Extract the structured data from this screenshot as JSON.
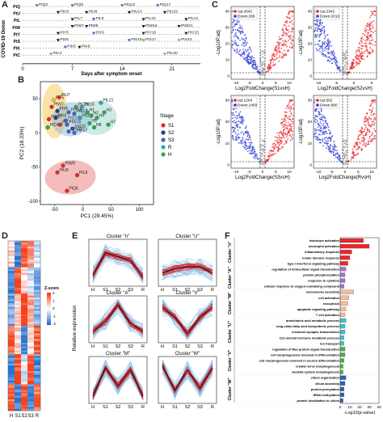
{
  "panel_labels": [
    "A",
    "B",
    "C",
    "D",
    "E",
    "F"
  ],
  "panelA": {
    "ylabel": "COVID-19 Donor",
    "xlabel": "Days after symptom onset",
    "rows": [
      "PtQ",
      "PtU",
      "PtL",
      "PtW",
      "PtY",
      "PtS",
      "PtK",
      "PtC"
    ],
    "xticks": [
      "0",
      "7",
      "14",
      "21"
    ],
    "points": [
      {
        "row": 0,
        "day": 2,
        "label": "PtQ3",
        "color": "#2d6ec9"
      },
      {
        "row": 0,
        "day": 7,
        "label": "PtQ5",
        "color": "#2d6ec9"
      },
      {
        "row": 0,
        "day": 14,
        "label": "PtQ12",
        "color": "#2d6ec9"
      },
      {
        "row": 0,
        "day": 19,
        "label": "PtQ17",
        "color": "#2d6ec9"
      },
      {
        "row": 1,
        "day": 5,
        "label": "PtU5",
        "color": "#1a1a1a"
      },
      {
        "row": 1,
        "day": 9,
        "label": "PtU9",
        "color": "#1a1a1a"
      },
      {
        "row": 1,
        "day": 15,
        "label": "PtU14",
        "color": "#1a1a1a"
      },
      {
        "row": 1,
        "day": 20,
        "label": "PtU19",
        "color": "#1a1a1a"
      },
      {
        "row": 2,
        "day": 7,
        "label": "PtL7",
        "color": "#1a1a1a"
      },
      {
        "row": 2,
        "day": 10,
        "label": "PtL9",
        "color": "#8e1fb8"
      },
      {
        "row": 2,
        "day": 17,
        "label": "PtL16",
        "color": "#1a1a1a"
      },
      {
        "row": 2,
        "day": 23,
        "label": "PtL21",
        "color": "#1a1a1a"
      },
      {
        "row": 3,
        "day": 7,
        "label": "PtW7",
        "color": "#1a1a1a"
      },
      {
        "row": 3,
        "day": 9,
        "label": "PtW9",
        "color": "#1a1a1a"
      },
      {
        "row": 3,
        "day": 17,
        "label": "PtW16",
        "color": "#1a1a1a"
      },
      {
        "row": 3,
        "day": 22,
        "label": "PtW21",
        "color": "#1a1a1a"
      },
      {
        "row": 4,
        "day": 5,
        "label": "PtY5",
        "color": "#1a1a1a"
      },
      {
        "row": 4,
        "day": 10,
        "label": "PtY9",
        "color": "#2d6ec9"
      },
      {
        "row": 4,
        "day": 17,
        "label": "PtY16",
        "color": "#1a1a1a"
      },
      {
        "row": 4,
        "day": 23,
        "label": "PtY23",
        "color": "#1a1a1a"
      },
      {
        "row": 5,
        "day": 5,
        "label": "PtS5",
        "color": "#1a1a1a"
      },
      {
        "row": 5,
        "day": 15,
        "label": "PtS15",
        "color": "#2d6ec9"
      },
      {
        "row": 5,
        "day": 17,
        "label": "PtS17",
        "color": "#6fbf3f"
      },
      {
        "row": 5,
        "day": 22,
        "label": "PtS23",
        "color": "#6fbf3f"
      },
      {
        "row": 6,
        "day": 6,
        "label": "PtK6",
        "color": "#2d6ec9"
      },
      {
        "row": 6,
        "day": 8,
        "label": "PtK8",
        "color": "#1a1a1a"
      },
      {
        "row": 7,
        "day": 4,
        "label": "PtC4",
        "color": "#6fbf3f"
      },
      {
        "row": 7,
        "day": 20,
        "label": "PtC20",
        "color": "#6fbf3f"
      }
    ]
  },
  "panelB": {
    "xlabel": "PC1 (29.45%)",
    "ylabel": "PC2 (18.33%)",
    "xticks": [
      "-50",
      "0",
      "50",
      "100"
    ],
    "yticks": [
      "50",
      "0",
      "-50",
      "-100"
    ],
    "legend_title": "Stage",
    "legend": [
      {
        "label": "S1",
        "color": "#e8272b"
      },
      {
        "label": "S2",
        "color": "#1f3d8e"
      },
      {
        "label": "S3",
        "color": "#3b6cb5"
      },
      {
        "label": "R",
        "color": "#2aa9b5"
      },
      {
        "label": "H",
        "color": "#2fa84f"
      }
    ],
    "ellipses": [
      {
        "color": "#f1c23a"
      },
      {
        "color": "#7fb0e0"
      },
      {
        "color": "#8fd0c8"
      },
      {
        "color": "#e86b6b"
      }
    ],
    "points": [
      {
        "x": -52,
        "y": 48,
        "label": "PtF5",
        "color": "#f1c23a"
      },
      {
        "x": -42,
        "y": 52,
        "label": "PtU7",
        "color": "#e8272b"
      },
      {
        "x": -55,
        "y": 38,
        "label": "PtW7",
        "color": "#e8272b"
      },
      {
        "x": -45,
        "y": 32,
        "label": "PtY5",
        "color": "#1f3d8e"
      },
      {
        "x": -60,
        "y": 20,
        "label": "PtQ3",
        "color": "#e8272b"
      },
      {
        "x": -48,
        "y": 22,
        "label": "PtK6",
        "color": "#1f3d8e"
      },
      {
        "x": -62,
        "y": 8,
        "label": "PtC4",
        "color": "#2fa84f"
      },
      {
        "x": -40,
        "y": 12,
        "label": "PtL7",
        "color": "#e8272b"
      },
      {
        "x": -12,
        "y": 38,
        "label": "PtC20",
        "color": "#2fa84f"
      },
      {
        "x": -2,
        "y": 38,
        "label": "PtL16",
        "color": "#2aa9b5"
      },
      {
        "x": -25,
        "y": 30,
        "label": "PtY16",
        "color": "#3b6cb5"
      },
      {
        "x": -15,
        "y": 28,
        "label": "PtS17",
        "color": "#3b6cb5"
      },
      {
        "x": -30,
        "y": 18,
        "label": "PtQ12",
        "color": "#3b6cb5"
      },
      {
        "x": -28,
        "y": 12,
        "label": "PtW16",
        "color": "#3b6cb5"
      },
      {
        "x": -18,
        "y": 6,
        "label": "PtX15",
        "color": "#3b6cb5"
      },
      {
        "x": -25,
        "y": 2,
        "label": "PtY10",
        "color": "#3b6cb5"
      },
      {
        "x": -15,
        "y": 0,
        "label": "PtP17",
        "color": "#3b6cb5"
      },
      {
        "x": -5,
        "y": 22,
        "label": "PtU14",
        "color": "#2aa9b5"
      },
      {
        "x": 8,
        "y": 30,
        "label": "H1",
        "color": "#2fa84f"
      },
      {
        "x": 15,
        "y": 25,
        "label": "H2",
        "color": "#2fa84f"
      },
      {
        "x": 25,
        "y": 22,
        "label": "H4",
        "color": "#2fa84f"
      },
      {
        "x": 38,
        "y": 30,
        "label": "H3",
        "color": "#2fa84f"
      },
      {
        "x": 12,
        "y": 14,
        "label": "H5",
        "color": "#2fa84f"
      },
      {
        "x": 20,
        "y": 8,
        "label": "H8",
        "color": "#2fa84f"
      },
      {
        "x": 45,
        "y": 12,
        "label": "H7",
        "color": "#2fa84f"
      },
      {
        "x": 32,
        "y": 44,
        "label": "PtL21",
        "color": "#2aa9b5"
      },
      {
        "x": -35,
        "y": -48,
        "label": "PtW9",
        "color": "#e8272b"
      },
      {
        "x": -45,
        "y": -58,
        "label": "PtU9",
        "color": "#e8272b"
      },
      {
        "x": -10,
        "y": -62,
        "label": "PtL9",
        "color": "#e8272b"
      },
      {
        "x": -28,
        "y": -85,
        "label": "PtQ5",
        "color": "#e8272b"
      }
    ]
  },
  "panelC": {
    "plots": [
      {
        "up": "Up:2642",
        "down": "Down:266",
        "xlabel": "Log2FoldChange(S1vsH)",
        "ylabel": "-Log10P.adj",
        "xticks": [
          "-10",
          "-5",
          "0",
          "5",
          "10"
        ],
        "yticks": [
          "0",
          "10",
          "20",
          "30",
          "40"
        ]
      },
      {
        "up": "Up:2342",
        "down": "Down:2010",
        "xlabel": "Log2FoldChange(S2vsH)",
        "ylabel": "-Log10P.adj",
        "xticks": [
          "-10",
          "-5",
          "0",
          "5"
        ],
        "yticks": [
          "0",
          "10",
          "20",
          "30",
          "40"
        ]
      },
      {
        "up": "Up:1204",
        "down": "Down:1459",
        "xlabel": "Log2FoldChange(S3vsH)",
        "ylabel": "-Log10P.adj",
        "xticks": [
          "-10",
          "-5",
          "0",
          "5",
          "10"
        ],
        "yticks": [
          "0",
          "10",
          "20",
          "30"
        ]
      },
      {
        "up": "Up:552",
        "down": "Down:680",
        "xlabel": "Log2FoldChange(RvsH)",
        "ylabel": "-Log10P.adj",
        "xticks": [
          "-10",
          "-5",
          "0",
          "5",
          "10"
        ],
        "yticks": [
          "0",
          "10",
          "20",
          "30"
        ]
      }
    ],
    "up_color": "#e8272b",
    "down_color": "#2d3bd1"
  },
  "panelD": {
    "xticks": [
      "H",
      "S1",
      "S2",
      "S3",
      "R"
    ],
    "scale_title": "Z-score",
    "scale_ticks": [
      "2",
      "1",
      "0",
      "-1",
      "-2"
    ]
  },
  "panelE": {
    "ylabel": "Relative expression",
    "xticks": [
      "H",
      "S1",
      "S2",
      "S3",
      "R"
    ],
    "clusters": [
      {
        "title": "Cluster \"n\"",
        "profile": [
          0.2,
          0.75,
          0.65,
          0.55,
          0.15
        ]
      },
      {
        "title": "Cluster \"U\"",
        "profile": [
          0.25,
          0.35,
          0.4,
          0.4,
          0.25
        ]
      },
      {
        "title": "Cluster \"A\"",
        "profile": [
          0.2,
          0.45,
          0.85,
          0.4,
          0.2
        ]
      },
      {
        "title": "Cluster \"V\"",
        "profile": [
          0.8,
          0.55,
          0.15,
          0.55,
          0.8
        ]
      },
      {
        "title": "Cluster \"M\"",
        "profile": [
          0.1,
          0.8,
          0.35,
          0.75,
          0.1
        ]
      },
      {
        "title": "Cluster \"W\"",
        "profile": [
          0.85,
          0.25,
          0.75,
          0.3,
          0.8
        ]
      }
    ]
  },
  "panelF": {
    "xlabel": "-Log10(p-value)",
    "xticks": [
      "0",
      "10",
      "20",
      "30",
      "40"
    ],
    "groups": [
      {
        "name": "Cluster \"n\"",
        "color": "#e8272b",
        "items": [
          {
            "term": "leukocyte activation",
            "value": 24
          },
          {
            "term": "neutrophil activation",
            "value": 30
          },
          {
            "term": "inflammatory response",
            "value": 12
          },
          {
            "term": "innate immune response",
            "value": 10
          },
          {
            "term": "type I interferon signaling pathway",
            "value": 8
          }
        ]
      },
      {
        "name": "Cluster \"A\"",
        "color": "#9a7ac2",
        "items": [
          {
            "term": "regulation of intracellular signal transduction",
            "value": 6
          },
          {
            "term": "protein phosphorylation",
            "value": 5
          },
          {
            "term": "response to cytokine",
            "value": 5
          },
          {
            "term": "cellular response to oxygen-containing compound",
            "value": 4
          }
        ]
      },
      {
        "name": "Cluster \"M\"",
        "color": "#f4b9a0",
        "items": [
          {
            "term": "nucleosome assembly",
            "value": 14
          },
          {
            "term": "cell activation",
            "value": 9
          },
          {
            "term": "exocytosis",
            "value": 8
          },
          {
            "term": "apoptotic signaling pathway",
            "value": 6
          },
          {
            "term": "T cell activation",
            "value": 5
          }
        ]
      },
      {
        "name": "Cluster \"U\"",
        "color": "#3ec1c9",
        "items": [
          {
            "term": "arachidonic acid metabolic process",
            "value": 6
          },
          {
            "term": "long-chain fatty acid biosynthetic process",
            "value": 5
          },
          {
            "term": "chemical synaptic transmission",
            "value": 5
          },
          {
            "term": "C21-steroid hormone metabolic process",
            "value": 4
          },
          {
            "term": "ion transport",
            "value": 4
          }
        ]
      },
      {
        "name": "Cluster \"V\"",
        "color": "#4caf50",
        "items": [
          {
            "term": "regulation of Ras protein signal transduction",
            "value": 5
          },
          {
            "term": "cell morphogenesis involved in differentiation",
            "value": 5
          },
          {
            "term": "cell morphogenesis involved in neuron differentiation",
            "value": 4
          },
          {
            "term": "cranial nerve morphogenesis",
            "value": 3
          },
          {
            "term": "skeletal system morphogenesis",
            "value": 3
          }
        ]
      },
      {
        "name": "Cluster \"W\"",
        "color": "#2f5fb3",
        "items": [
          {
            "term": "cilium organization",
            "value": 6
          },
          {
            "term": "cilium assembly",
            "value": 5
          },
          {
            "term": "protein prenylation",
            "value": 4
          },
          {
            "term": "tRNA methylation",
            "value": 4
          },
          {
            "term": "protein localization to cilium",
            "value": 3
          }
        ]
      }
    ]
  }
}
